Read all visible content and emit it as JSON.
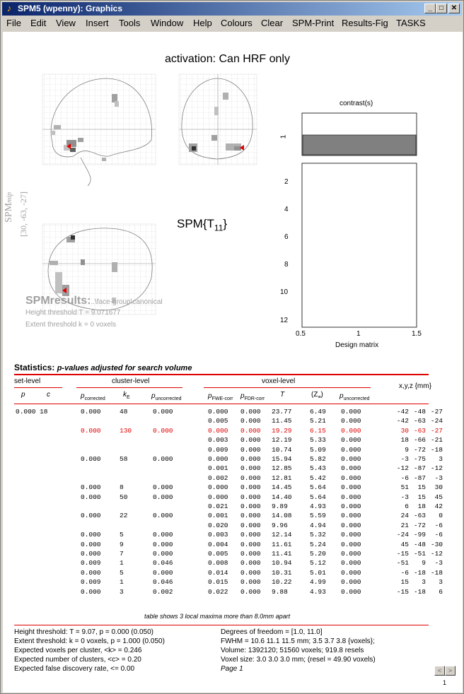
{
  "window": {
    "title": "SPM5 (wpenny): Graphics",
    "minimize": "_",
    "maximize": "□",
    "close": "✕"
  },
  "menu": [
    "File",
    "Edit",
    "View",
    "Insert",
    "Tools",
    "Window",
    "Help",
    "Colours",
    "Clear",
    "SPM-Print",
    "Results-Fig",
    "TASKS"
  ],
  "header": {
    "title": "activation: Can HRF only"
  },
  "mip": {
    "label_spm": "SPM",
    "label_mip": "mip",
    "coords": "[30, -63, -27]",
    "spm_t": "SPM{T",
    "spm_t_sub": "11",
    "spm_t_close": "}"
  },
  "spmresults": {
    "name": "SPMresults:",
    "path": "..\\face-group\\canonical",
    "height_threshold": "Height threshold T = 9.071677",
    "extent_threshold": "Extent threshold k = 0 voxels"
  },
  "design_matrix": {
    "contrast_label": "contrast(s)",
    "contrast_num": "1",
    "y_ticks": [
      "2",
      "4",
      "6",
      "8",
      "10",
      "12"
    ],
    "x_ticks": [
      "0.5",
      "1",
      "1.5"
    ],
    "xlabel": "Design matrix"
  },
  "statistics": {
    "title": "Statistics:",
    "subtitle": "p-values adjusted for search volume",
    "set_level": "set-level",
    "cluster_level": "cluster-level",
    "voxel_level": "voxel-level",
    "xyz": "x,y,z {mm}",
    "col_p": "p",
    "col_c": "c",
    "col_pcorr": "p",
    "col_pcorr_sub": "corrected",
    "col_ke": "k",
    "col_ke_sub": "E",
    "col_punc": "p",
    "col_punc_sub": "uncorrected",
    "col_pfwe": "p",
    "col_pfwe_sub": "FWE-corr",
    "col_pfdr": "p",
    "col_pfdr_sub": "FDR-corr",
    "col_t": "T",
    "col_z": "(Z",
    "col_z_sub": "≡",
    "col_z_close": ")",
    "col_pvunc": "p",
    "col_pvunc_sub": "uncorrected",
    "rows": [
      {
        "sp": "0.000",
        "sc": "18",
        "pc": "0.000",
        "ke": "48",
        "pu": "0.000",
        "fwe": "0.000",
        "fdr": "0.000",
        "t": "23.77",
        "z": "6.49",
        "pv": "0.000",
        "x": "-42",
        "y": "-48",
        "zz": "-27",
        "red": false
      },
      {
        "sp": "",
        "sc": "",
        "pc": "",
        "ke": "",
        "pu": "",
        "fwe": "0.005",
        "fdr": "0.000",
        "t": "11.45",
        "z": "5.21",
        "pv": "0.000",
        "x": "-42",
        "y": "-63",
        "zz": "-24",
        "red": false
      },
      {
        "sp": "",
        "sc": "",
        "pc": "0.000",
        "ke": "130",
        "pu": "0.000",
        "fwe": "0.000",
        "fdr": "0.000",
        "t": "19.29",
        "z": "6.15",
        "pv": "0.000",
        "x": "30",
        "y": "-63",
        "zz": "-27",
        "red": true
      },
      {
        "sp": "",
        "sc": "",
        "pc": "",
        "ke": "",
        "pu": "",
        "fwe": "0.003",
        "fdr": "0.000",
        "t": "12.19",
        "z": "5.33",
        "pv": "0.000",
        "x": "18",
        "y": "-66",
        "zz": "-21",
        "red": false
      },
      {
        "sp": "",
        "sc": "",
        "pc": "",
        "ke": "",
        "pu": "",
        "fwe": "0.009",
        "fdr": "0.000",
        "t": "10.74",
        "z": "5.09",
        "pv": "0.000",
        "x": "9",
        "y": "-72",
        "zz": "-18",
        "red": false
      },
      {
        "sp": "",
        "sc": "",
        "pc": "0.000",
        "ke": "58",
        "pu": "0.000",
        "fwe": "0.000",
        "fdr": "0.000",
        "t": "15.94",
        "z": "5.82",
        "pv": "0.000",
        "x": "-3",
        "y": "-75",
        "zz": "3",
        "red": false
      },
      {
        "sp": "",
        "sc": "",
        "pc": "",
        "ke": "",
        "pu": "",
        "fwe": "0.001",
        "fdr": "0.000",
        "t": "12.85",
        "z": "5.43",
        "pv": "0.000",
        "x": "-12",
        "y": "-87",
        "zz": "-12",
        "red": false
      },
      {
        "sp": "",
        "sc": "",
        "pc": "",
        "ke": "",
        "pu": "",
        "fwe": "0.002",
        "fdr": "0.000",
        "t": "12.81",
        "z": "5.42",
        "pv": "0.000",
        "x": "-6",
        "y": "-87",
        "zz": "-3",
        "red": false
      },
      {
        "sp": "",
        "sc": "",
        "pc": "0.000",
        "ke": "8",
        "pu": "0.000",
        "fwe": "0.000",
        "fdr": "0.000",
        "t": "14.45",
        "z": "5.64",
        "pv": "0.000",
        "x": "51",
        "y": "15",
        "zz": "30",
        "red": false
      },
      {
        "sp": "",
        "sc": "",
        "pc": "0.000",
        "ke": "50",
        "pu": "0.000",
        "fwe": "0.000",
        "fdr": "0.000",
        "t": "14.40",
        "z": "5.64",
        "pv": "0.000",
        "x": "-3",
        "y": "15",
        "zz": "45",
        "red": false
      },
      {
        "sp": "",
        "sc": "",
        "pc": "",
        "ke": "",
        "pu": "",
        "fwe": "0.021",
        "fdr": "0.000",
        "t": "9.89",
        "z": "4.93",
        "pv": "0.000",
        "x": "6",
        "y": "18",
        "zz": "42",
        "red": false
      },
      {
        "sp": "",
        "sc": "",
        "pc": "0.000",
        "ke": "22",
        "pu": "0.000",
        "fwe": "0.001",
        "fdr": "0.000",
        "t": "14.08",
        "z": "5.59",
        "pv": "0.000",
        "x": "24",
        "y": "-63",
        "zz": "0",
        "red": false
      },
      {
        "sp": "",
        "sc": "",
        "pc": "",
        "ke": "",
        "pu": "",
        "fwe": "0.020",
        "fdr": "0.000",
        "t": "9.96",
        "z": "4.94",
        "pv": "0.000",
        "x": "21",
        "y": "-72",
        "zz": "-6",
        "red": false
      },
      {
        "sp": "",
        "sc": "",
        "pc": "0.000",
        "ke": "5",
        "pu": "0.000",
        "fwe": "0.003",
        "fdr": "0.000",
        "t": "12.14",
        "z": "5.32",
        "pv": "0.000",
        "x": "-24",
        "y": "-99",
        "zz": "-6",
        "red": false
      },
      {
        "sp": "",
        "sc": "",
        "pc": "0.000",
        "ke": "9",
        "pu": "0.000",
        "fwe": "0.004",
        "fdr": "0.000",
        "t": "11.61",
        "z": "5.24",
        "pv": "0.000",
        "x": "45",
        "y": "-48",
        "zz": "-30",
        "red": false
      },
      {
        "sp": "",
        "sc": "",
        "pc": "0.000",
        "ke": "7",
        "pu": "0.000",
        "fwe": "0.005",
        "fdr": "0.000",
        "t": "11.41",
        "z": "5.20",
        "pv": "0.000",
        "x": "-15",
        "y": "-51",
        "zz": "-12",
        "red": false
      },
      {
        "sp": "",
        "sc": "",
        "pc": "0.009",
        "ke": "1",
        "pu": "0.046",
        "fwe": "0.008",
        "fdr": "0.000",
        "t": "10.94",
        "z": "5.12",
        "pv": "0.000",
        "x": "-51",
        "y": "9",
        "zz": "-3",
        "red": false
      },
      {
        "sp": "",
        "sc": "",
        "pc": "0.000",
        "ke": "5",
        "pu": "0.000",
        "fwe": "0.014",
        "fdr": "0.000",
        "t": "10.31",
        "z": "5.01",
        "pv": "0.000",
        "x": "-6",
        "y": "-18",
        "zz": "-18",
        "red": false
      },
      {
        "sp": "",
        "sc": "",
        "pc": "0.009",
        "ke": "1",
        "pu": "0.046",
        "fwe": "0.015",
        "fdr": "0.000",
        "t": "10.22",
        "z": "4.99",
        "pv": "0.000",
        "x": "15",
        "y": "3",
        "zz": "3",
        "red": false
      },
      {
        "sp": "",
        "sc": "",
        "pc": "0.000",
        "ke": "3",
        "pu": "0.002",
        "fwe": "0.022",
        "fdr": "0.000",
        "t": "9.88",
        "z": "4.93",
        "pv": "0.000",
        "x": "-15",
        "y": "-18",
        "zz": "6",
        "red": false
      }
    ],
    "table_note": "table shows 3 local maxima more than 8.0mm apart"
  },
  "footer": {
    "left": [
      "Height threshold: T = 9.07, p = 0.000 (0.050)",
      "Extent threshold: k = 0 voxels, p = 1.000 (0.050)",
      "Expected voxels per cluster, <k> = 0.246",
      "Expected number of clusters, <c> = 0.20",
      "Expected false discovery rate, <= 0.00"
    ],
    "right": [
      "Degrees of freedom = [1.0, 11.0]",
      "FWHM = 10.6 11.1 11.5 mm; 3.5 3.7 3.8 {voxels};",
      "Volume: 1392120; 51560 voxels; 919.8 resels",
      "Voxel size: 3.0 3.0 3.0 mm; (resel = 49.90 voxels)",
      "Page 1"
    ],
    "prev": "<",
    "next": ">",
    "page_num": "1"
  },
  "colors": {
    "titlebar_start": "#0a246a",
    "titlebar_end": "#a6caf0",
    "accent_red": "#e00000",
    "contrast_bar": "#808080"
  }
}
